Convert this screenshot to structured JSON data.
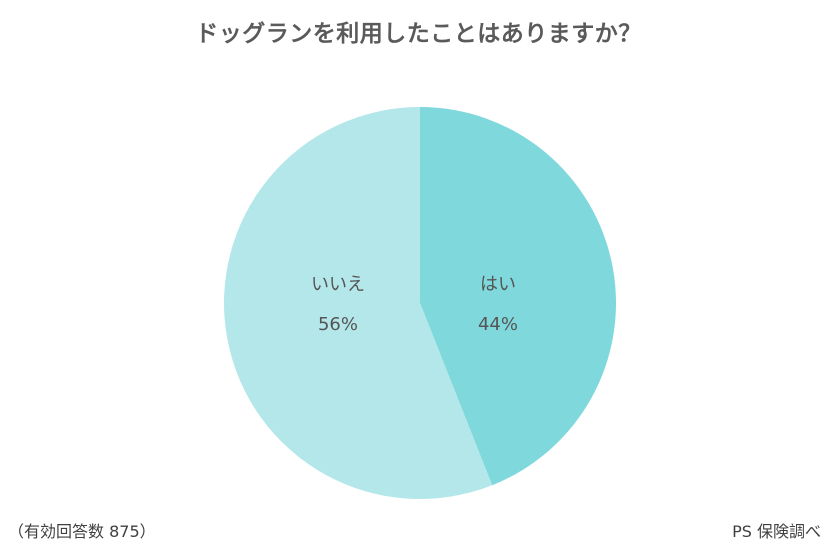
{
  "chart_data": {
    "type": "pie",
    "title": "ドッグランを利用したことはありますか？",
    "slices": [
      {
        "label": "はい",
        "value": 44,
        "value_label": "44%",
        "color": "#7fd8dc"
      },
      {
        "label": "いいえ",
        "value": 56,
        "value_label": "56%",
        "color": "#b3e7e9"
      }
    ],
    "start_angle": "12 o'clock",
    "direction": "clockwise"
  },
  "footnote": "（有効回答数 875）",
  "source": "PS 保険調べ"
}
